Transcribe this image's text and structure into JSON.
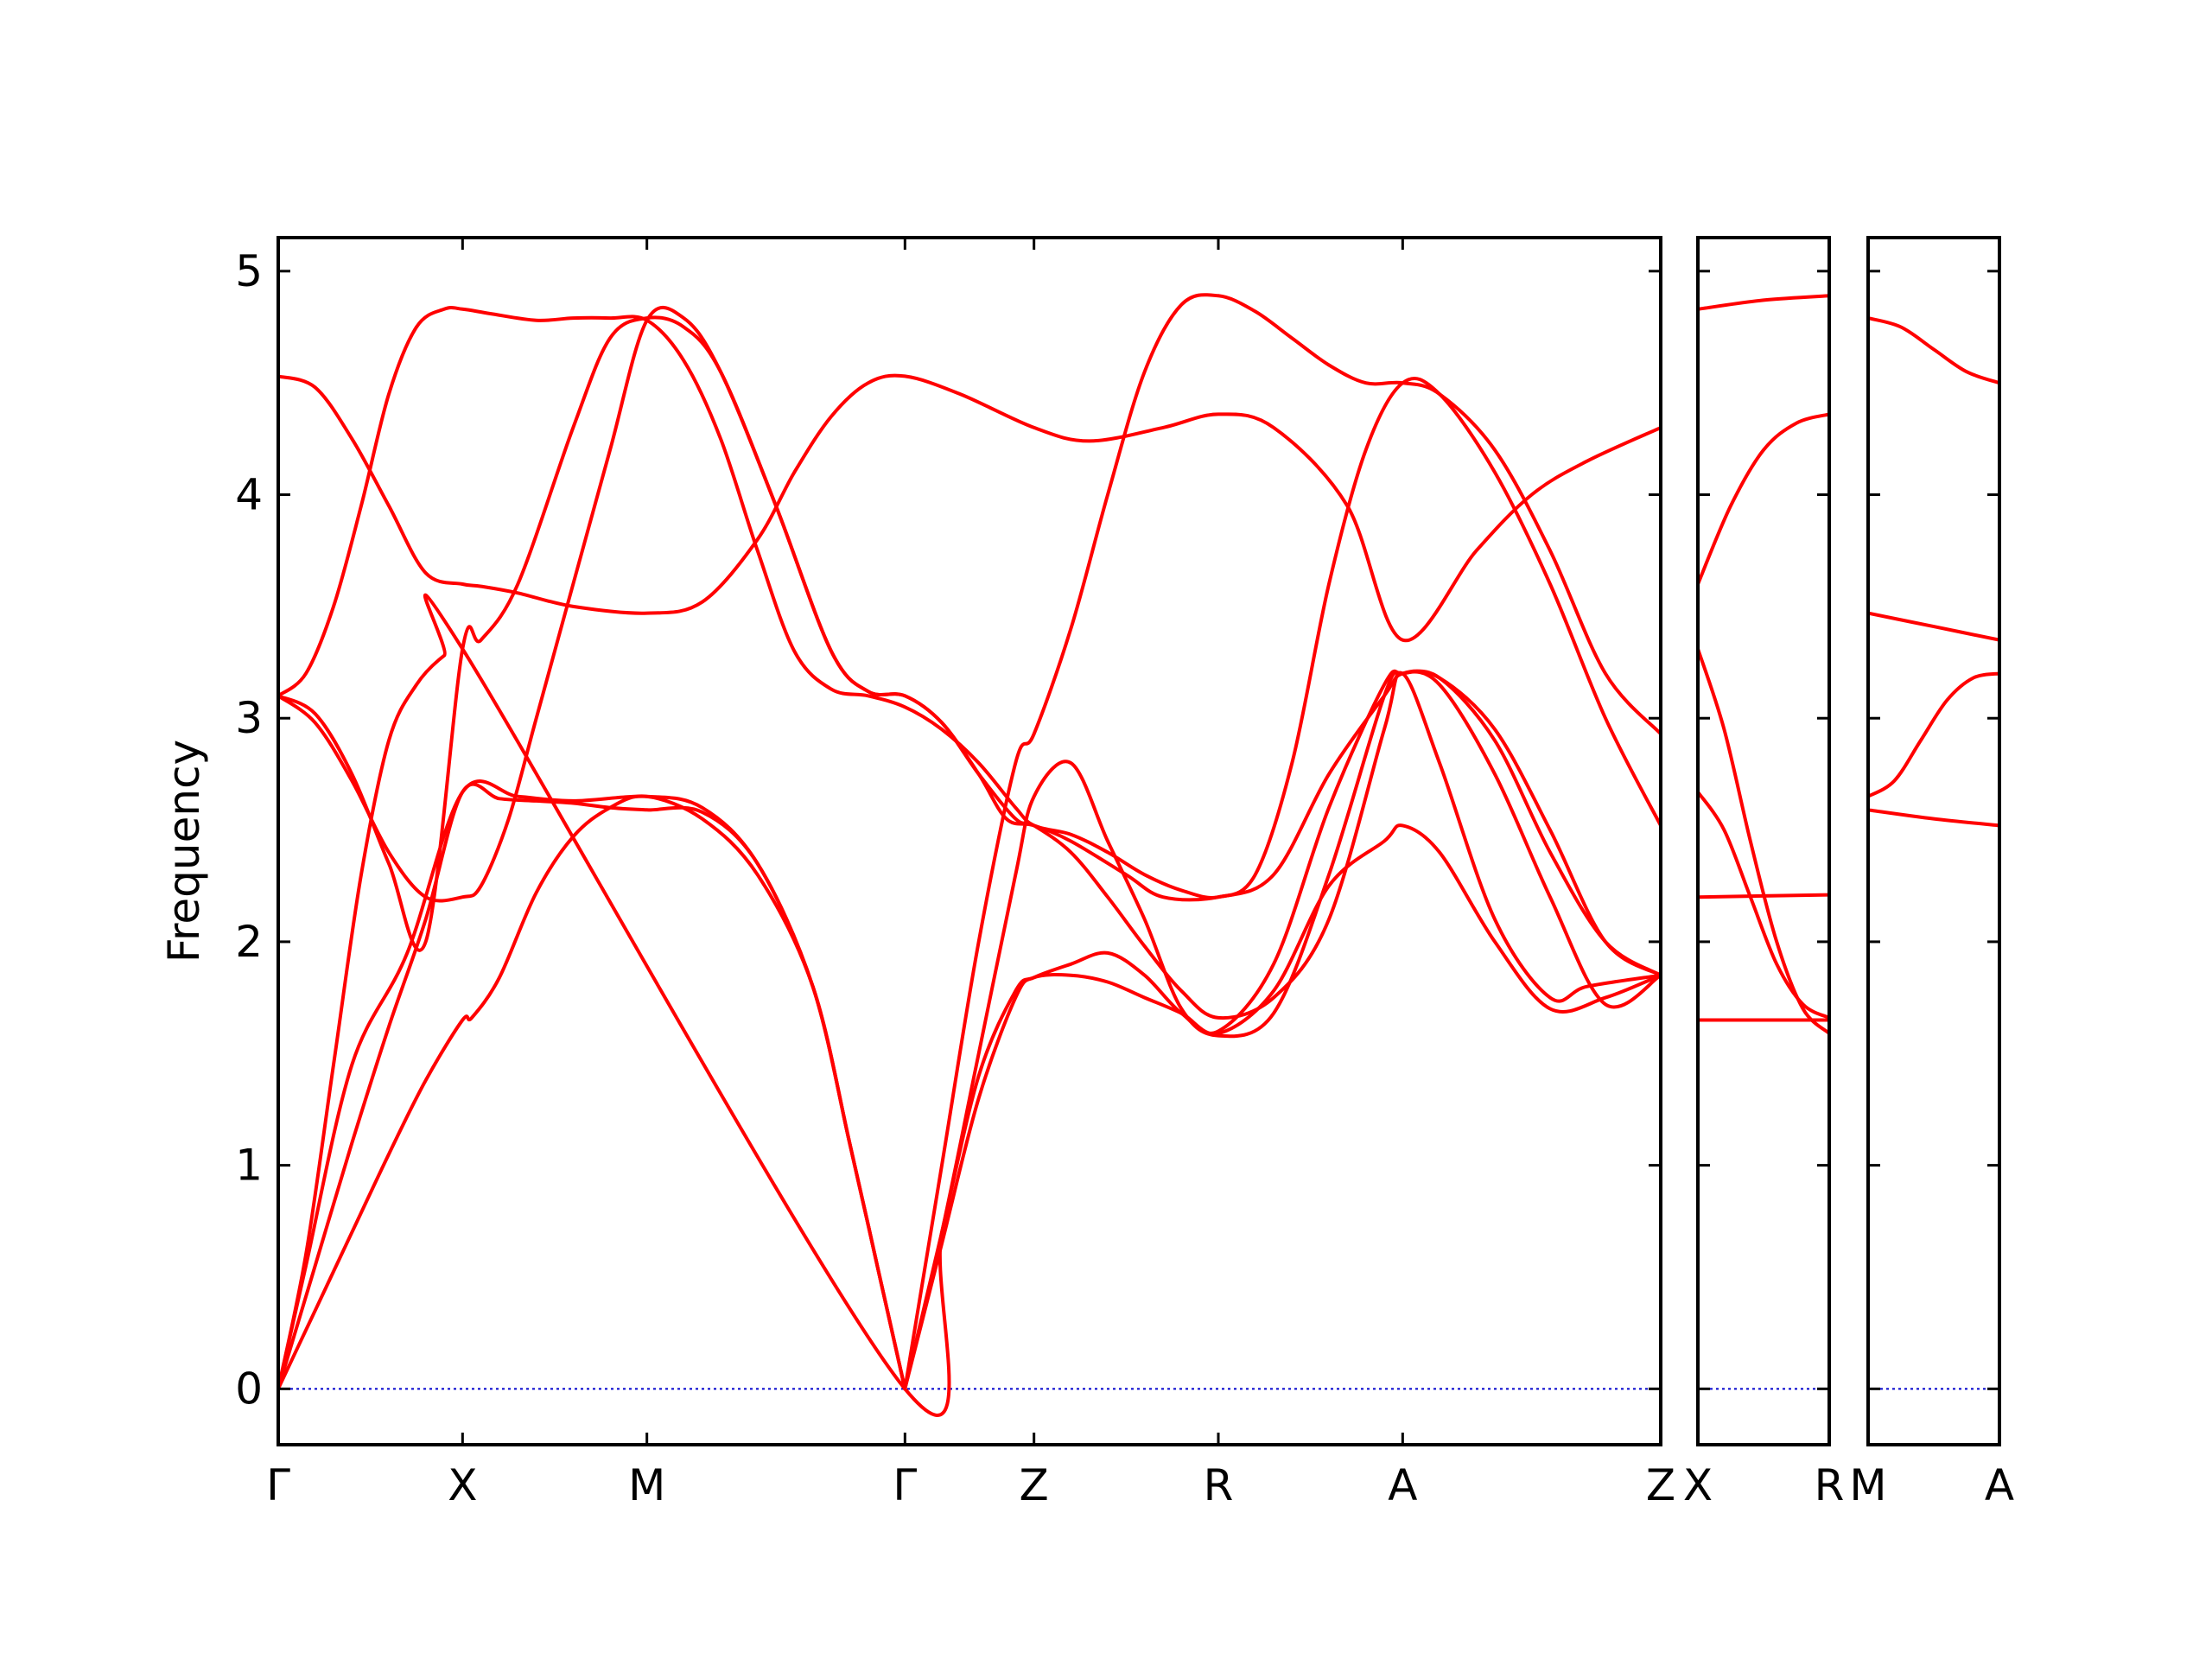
{
  "chart_data": {
    "type": "line",
    "title": "",
    "ylabel": "Frequency",
    "ylim": [
      -0.25,
      5.15
    ],
    "yticks": [
      0,
      1,
      2,
      3,
      4,
      5
    ],
    "band_color": "#ff0000",
    "zero_line_color": "#0000cc",
    "grid": false,
    "panels": [
      {
        "name": "panel-main",
        "xlim": [
          0,
          7.5
        ],
        "xticks": [
          {
            "x": 0,
            "label": "Γ"
          },
          {
            "x": 1,
            "label": "X"
          },
          {
            "x": 2,
            "label": "M"
          },
          {
            "x": 3.4,
            "label": "Γ"
          },
          {
            "x": 4.1,
            "label": "Z"
          },
          {
            "x": 5.1,
            "label": "R"
          },
          {
            "x": 6.1,
            "label": "A"
          },
          {
            "x": 7.5,
            "label": "Z"
          }
        ],
        "series": [
          {
            "x": [
              0,
              0.15,
              0.4,
              0.7,
              1.0,
              1.3,
              1.6,
              2.0,
              2.3,
              2.6,
              2.9,
              3.1,
              3.25,
              3.4
            ],
            "y": [
              0,
              0.55,
              1.45,
              1.95,
              2.67,
              2.65,
              2.63,
              2.65,
              2.6,
              2.35,
              1.8,
              1.1,
              0.55,
              0
            ]
          },
          {
            "x": [
              0,
              0.2,
              0.4,
              0.6,
              0.8,
              1.0,
              1.2,
              1.4,
              1.6,
              1.8,
              2.0,
              2.3,
              2.6,
              2.9,
              3.1,
              3.25,
              3.4
            ],
            "y": [
              0,
              0.55,
              1.1,
              1.62,
              2.1,
              2.67,
              2.64,
              2.63,
              2.62,
              2.6,
              2.59,
              2.58,
              2.35,
              1.8,
              1.1,
              0.55,
              0
            ]
          },
          {
            "x": [
              0,
              0.2,
              0.4,
              0.6,
              0.8,
              1.0,
              1.05,
              1.2,
              1.4,
              1.6,
              1.8,
              2.0,
              2.3,
              2.6,
              2.9,
              3.1,
              3.25,
              3.4
            ],
            "y": [
              0,
              0.35,
              0.7,
              1.05,
              1.38,
              1.65,
              1.66,
              1.84,
              2.22,
              2.47,
              2.6,
              2.65,
              2.55,
              2.3,
              1.8,
              1.1,
              0.55,
              0
            ]
          },
          {
            "x": [
              0,
              0.15,
              0.3,
              0.45,
              0.6,
              0.75,
              0.9,
              1.0,
              1.15,
              1.4,
              1.6,
              1.8,
              2.0,
              2.2,
              2.4,
              2.6,
              2.8,
              3.0,
              3.2,
              3.4,
              3.6,
              3.8,
              4.0,
              4.1,
              4.3,
              4.5,
              4.7,
              4.9,
              5.1,
              5.3,
              5.5,
              5.7,
              5.9,
              6.1,
              6.3,
              6.6,
              6.9,
              7.2,
              7.5
            ],
            "y": [
              3.1,
              3.2,
              3.5,
              3.95,
              4.45,
              4.75,
              4.83,
              4.83,
              4.81,
              4.78,
              4.79,
              4.79,
              4.78,
              4.6,
              4.25,
              3.75,
              3.3,
              3.13,
              3.1,
              3.05,
              2.95,
              2.8,
              2.6,
              2.52,
              2.48,
              2.4,
              2.3,
              2.23,
              2.2,
              2.3,
              2.8,
              3.6,
              4.2,
              4.5,
              4.45,
              4.1,
              3.6,
              3.0,
              2.52
            ]
          },
          {
            "x": [
              0,
              0.2,
              0.4,
              0.6,
              0.8,
              1.0,
              1.1,
              1.3,
              1.6,
              2.0,
              2.3,
              2.6,
              2.8,
              3.0,
              3.2,
              3.4,
              3.7,
              4.1,
              4.4,
              4.8,
              5.1,
              5.4,
              5.8,
              6.1,
              6.5,
              6.8,
              7.1,
              7.5
            ],
            "y": [
              4.53,
              4.48,
              4.25,
              3.95,
              3.65,
              3.6,
              3.59,
              3.56,
              3.5,
              3.47,
              3.52,
              3.8,
              4.1,
              4.35,
              4.5,
              4.53,
              4.45,
              4.3,
              4.24,
              4.3,
              4.36,
              4.3,
              3.95,
              3.35,
              3.75,
              4.0,
              4.15,
              4.3
            ]
          },
          {
            "x": [
              0,
              0.2,
              0.4,
              0.6,
              0.8,
              1.0,
              1.1,
              1.25,
              1.4,
              1.6,
              1.8,
              2.0,
              2.2,
              2.4,
              2.7,
              3.0,
              3.2,
              3.4,
              3.6,
              3.8,
              3.95,
              4.1,
              4.3,
              4.6,
              4.8,
              5.1,
              5.4,
              5.7,
              6.0,
              6.1,
              6.3,
              6.6,
              6.9,
              7.2,
              7.5
            ],
            "y": [
              3.1,
              2.98,
              2.72,
              2.4,
              2.2,
              2.2,
              2.25,
              2.55,
              3.0,
              3.6,
              4.2,
              4.78,
              4.79,
              4.55,
              3.95,
              3.3,
              3.12,
              3.1,
              2.98,
              2.75,
              2.55,
              2.52,
              2.45,
              2.3,
              2.2,
              2.2,
              2.3,
              2.75,
              3.1,
              3.2,
              3.18,
              2.95,
              2.5,
              2.0,
              1.85
            ]
          },
          {
            "x": [
              0,
              0.2,
              0.4,
              0.6,
              0.8,
              1.0,
              1.1,
              1.3,
              1.6,
              1.8,
              2.0,
              2.2,
              2.4,
              2.7,
              3.0,
              3.2,
              3.4,
              3.6,
              3.8,
              4.0,
              4.1,
              4.3,
              4.5,
              4.7,
              4.9,
              5.1,
              5.4,
              5.7,
              6.0,
              6.1,
              6.3,
              6.6,
              6.9,
              7.1,
              7.5
            ],
            "y": [
              3.1,
              3.02,
              2.75,
              2.35,
              2.0,
              3.31,
              3.35,
              3.6,
              4.3,
              4.7,
              4.79,
              4.75,
              4.55,
              3.95,
              3.3,
              3.12,
              3.1,
              2.98,
              2.75,
              2.55,
              2.52,
              2.4,
              2.2,
              1.98,
              1.78,
              1.66,
              1.75,
              2.1,
              2.95,
              3.2,
              2.8,
              2.1,
              1.75,
              1.8,
              1.85
            ]
          },
          {
            "x": [
              0,
              0.15,
              0.3,
              0.45,
              0.6,
              0.75,
              0.9,
              1.0,
              3.4,
              3.6,
              3.8,
              4.0,
              4.1,
              4.3,
              4.5,
              4.7,
              4.9,
              5.1,
              5.4,
              5.7,
              6.0,
              6.1,
              6.3,
              6.6,
              6.9,
              7.2,
              7.5
            ],
            "y": [
              0,
              0.6,
              1.45,
              2.3,
              2.9,
              3.15,
              3.28,
              3.31,
              0,
              0.7,
              1.5,
              2.3,
              2.65,
              2.8,
              2.45,
              2.1,
              1.7,
              1.58,
              1.68,
              2.3,
              3.1,
              3.2,
              3.15,
              2.75,
              2.2,
              1.72,
              1.85
            ]
          },
          {
            "x": [
              3.4,
              3.6,
              3.8,
              4.0,
              4.1,
              4.3,
              4.5,
              4.7,
              4.9,
              5.1,
              5.4,
              5.7,
              6.0,
              6.1,
              6.3,
              6.6,
              6.9,
              7.2,
              7.5
            ],
            "y": [
              0,
              0.65,
              1.3,
              1.75,
              1.84,
              1.85,
              1.82,
              1.75,
              1.68,
              1.59,
              1.78,
              2.25,
              2.45,
              2.52,
              2.4,
              2.0,
              1.7,
              1.75,
              1.85
            ]
          },
          {
            "x": [
              3.4,
              3.6,
              3.8,
              4.0,
              4.1,
              4.3,
              4.5,
              4.7,
              4.9,
              5.1,
              5.4,
              5.7,
              6.0,
              6.1,
              6.3,
              6.6,
              6.9,
              7.2,
              7.5
            ],
            "y": [
              0,
              0.7,
              1.4,
              1.78,
              1.84,
              1.9,
              1.95,
              1.85,
              1.68,
              1.6,
              1.9,
              2.6,
              3.15,
              3.2,
              3.18,
              2.9,
              2.4,
              2.0,
              1.85
            ]
          },
          {
            "x": [
              3.4,
              3.6,
              3.8,
              4.0,
              4.1,
              4.3,
              4.5,
              4.7,
              4.9,
              5.1,
              5.3,
              5.5,
              5.7,
              5.9,
              6.1,
              6.3,
              6.6,
              6.9,
              7.2,
              7.5
            ],
            "y": [
              0,
              1.0,
              2.0,
              2.8,
              2.93,
              3.4,
              4.0,
              4.55,
              4.85,
              4.89,
              4.82,
              4.7,
              4.58,
              4.5,
              4.5,
              4.45,
              4.2,
              3.75,
              3.2,
              2.93
            ]
          }
        ]
      },
      {
        "name": "panel-xr",
        "xlim": [
          0,
          1
        ],
        "xticks": [
          {
            "x": 0,
            "label": "X"
          },
          {
            "x": 1,
            "label": "R"
          }
        ],
        "series": [
          {
            "x": [
              0,
              0.5,
              1
            ],
            "y": [
              4.83,
              4.87,
              4.89
            ]
          },
          {
            "x": [
              0,
              0.25,
              0.5,
              0.75,
              1
            ],
            "y": [
              3.6,
              3.95,
              4.2,
              4.32,
              4.36
            ]
          },
          {
            "x": [
              0,
              0.2,
              0.4,
              0.6,
              0.8,
              1
            ],
            "y": [
              3.31,
              2.95,
              2.45,
              2.0,
              1.7,
              1.59
            ]
          },
          {
            "x": [
              0,
              0.2,
              0.4,
              0.6,
              0.8,
              1
            ],
            "y": [
              2.67,
              2.5,
              2.2,
              1.9,
              1.72,
              1.66
            ]
          },
          {
            "x": [
              0,
              1
            ],
            "y": [
              2.2,
              2.21
            ]
          },
          {
            "x": [
              0,
              1
            ],
            "y": [
              1.65,
              1.65
            ]
          }
        ]
      },
      {
        "name": "panel-ma",
        "xlim": [
          0,
          1
        ],
        "xticks": [
          {
            "x": 0,
            "label": "M"
          },
          {
            "x": 1,
            "label": "A"
          }
        ],
        "series": [
          {
            "x": [
              0,
              0.25,
              0.5,
              0.75,
              1
            ],
            "y": [
              4.79,
              4.75,
              4.65,
              4.55,
              4.5
            ]
          },
          {
            "x": [
              0,
              0.5,
              1
            ],
            "y": [
              3.47,
              3.41,
              3.35
            ]
          },
          {
            "x": [
              0,
              0.2,
              0.4,
              0.6,
              0.8,
              1
            ],
            "y": [
              2.65,
              2.72,
              2.9,
              3.08,
              3.18,
              3.2
            ]
          },
          {
            "x": [
              0,
              0.5,
              1
            ],
            "y": [
              2.59,
              2.55,
              2.52
            ]
          }
        ]
      }
    ]
  }
}
